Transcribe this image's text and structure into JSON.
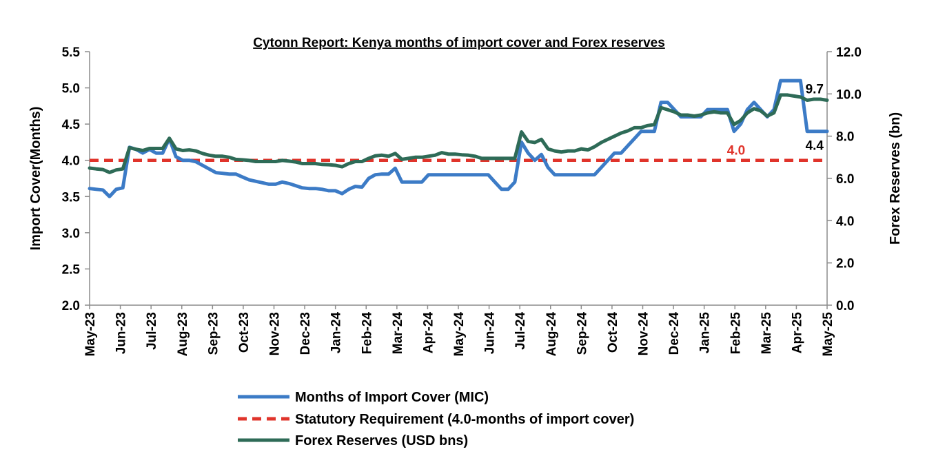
{
  "chart_data": {
    "type": "line",
    "title": "Cytonn Report: Kenya months of import cover and Forex reserves",
    "ylabel_left": "Import Cover(Months)",
    "ylabel_right": "Forex Reserves (bn)",
    "ylim_left": [
      2.0,
      5.5
    ],
    "ylim_right": [
      0.0,
      12.0
    ],
    "left_ticks": [
      "2.0",
      "2.5",
      "3.0",
      "3.5",
      "4.0",
      "4.5",
      "5.0",
      "5.5"
    ],
    "right_ticks": [
      "0.0",
      "2.0",
      "4.0",
      "6.0",
      "8.0",
      "10.0",
      "12.0"
    ],
    "x_labels": [
      "May-23",
      "Jun-23",
      "Jul-23",
      "Aug-23",
      "Sep-23",
      "Oct-23",
      "Nov-23",
      "Dec-23",
      "Jan-24",
      "Feb-24",
      "Mar-24",
      "Apr-24",
      "May-24",
      "Jun-24",
      "Jul-24",
      "Aug-24",
      "Sep-24",
      "Oct-24",
      "Nov-24",
      "Dec-24",
      "Jan-25",
      "Feb-25",
      "Mar-25",
      "Apr-25",
      "May-25"
    ],
    "grid": false,
    "legend_position": "bottom",
    "series": [
      {
        "name": "Months of Import Cover (MIC)",
        "axis": "left",
        "color": "#3C7BC6",
        "values": [
          3.61,
          3.6,
          3.59,
          3.5,
          3.6,
          3.62,
          4.18,
          4.15,
          4.1,
          4.15,
          4.1,
          4.1,
          4.3,
          4.05,
          4.0,
          4.0,
          3.98,
          3.93,
          3.88,
          3.83,
          3.82,
          3.81,
          3.81,
          3.77,
          3.73,
          3.71,
          3.69,
          3.67,
          3.67,
          3.7,
          3.68,
          3.65,
          3.62,
          3.61,
          3.61,
          3.6,
          3.58,
          3.58,
          3.54,
          3.6,
          3.64,
          3.63,
          3.75,
          3.8,
          3.81,
          3.81,
          3.89,
          3.7,
          3.7,
          3.7,
          3.7,
          3.8,
          3.8,
          3.8,
          3.8,
          3.8,
          3.8,
          3.8,
          3.8,
          3.8,
          3.8,
          3.7,
          3.6,
          3.6,
          3.7,
          4.25,
          4.1,
          4.0,
          4.08,
          3.9,
          3.8,
          3.8,
          3.8,
          3.8,
          3.8,
          3.8,
          3.8,
          3.9,
          4.0,
          4.1,
          4.1,
          4.2,
          4.3,
          4.4,
          4.4,
          4.4,
          4.8,
          4.8,
          4.7,
          4.6,
          4.6,
          4.6,
          4.6,
          4.7,
          4.7,
          4.7,
          4.7,
          4.4,
          4.5,
          4.7,
          4.8,
          4.7,
          4.6,
          4.7,
          5.1,
          5.1,
          5.1,
          5.1,
          4.4,
          4.4,
          4.4,
          4.4
        ]
      },
      {
        "name": "Statutory Requirement (4.0-months of import cover)",
        "axis": "left",
        "color": "#E0342B",
        "values": [
          4.0
        ]
      },
      {
        "name": "Forex Reserves (USD bns)",
        "axis": "right",
        "color": "#2E6B57",
        "values": [
          6.49,
          6.45,
          6.42,
          6.28,
          6.4,
          6.45,
          7.45,
          7.38,
          7.32,
          7.42,
          7.42,
          7.42,
          7.9,
          7.4,
          7.32,
          7.35,
          7.3,
          7.18,
          7.1,
          7.05,
          7.05,
          7.0,
          6.9,
          6.88,
          6.85,
          6.8,
          6.8,
          6.8,
          6.8,
          6.85,
          6.82,
          6.78,
          6.7,
          6.7,
          6.7,
          6.66,
          6.65,
          6.62,
          6.55,
          6.7,
          6.8,
          6.8,
          6.95,
          7.07,
          7.1,
          7.05,
          7.18,
          6.9,
          6.95,
          7.0,
          7.0,
          7.05,
          7.1,
          7.22,
          7.15,
          7.15,
          7.12,
          7.1,
          7.05,
          6.95,
          6.95,
          6.95,
          6.95,
          6.95,
          6.95,
          8.2,
          7.75,
          7.7,
          7.85,
          7.4,
          7.3,
          7.25,
          7.3,
          7.3,
          7.4,
          7.35,
          7.5,
          7.7,
          7.85,
          8.0,
          8.15,
          8.25,
          8.4,
          8.4,
          8.5,
          8.55,
          9.35,
          9.25,
          9.15,
          9.0,
          9.0,
          8.95,
          9.0,
          9.1,
          9.15,
          9.1,
          9.1,
          8.55,
          8.75,
          9.1,
          9.3,
          9.2,
          8.95,
          9.1,
          9.95,
          9.95,
          9.9,
          9.85,
          9.7,
          9.75,
          9.75,
          9.7
        ]
      }
    ],
    "annotations": [
      {
        "text": "9.7",
        "color": "#000000"
      },
      {
        "text": "4.0",
        "color": "#E0342B"
      },
      {
        "text": "4.4",
        "color": "#000000"
      }
    ]
  }
}
